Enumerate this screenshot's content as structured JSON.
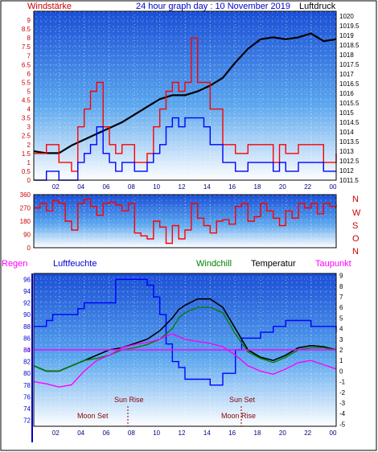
{
  "header": {
    "left_label": "Windstärke",
    "title": "24 hour graph day : 10 November 2019",
    "right_label": "Luftdruck"
  },
  "legend": {
    "regen": "Regen",
    "luftfeuchte": "Luftfeuchte",
    "windchill": "Windchill",
    "temperatur": "Temperatur",
    "taupunkt": "Taupunkt"
  },
  "compass_labels": [
    "N",
    "W",
    "S",
    "O",
    "N"
  ],
  "annotations": {
    "sun_rise": "Sun Rise",
    "sun_set": "Sun Set",
    "moon_set": "Moon Set",
    "moon_rise": "Moon Rise"
  },
  "colors": {
    "gust": "#ff0000",
    "wind": "#0000ff",
    "pressure": "#000000",
    "direction": "#ff0000",
    "humidity": "#0000ff",
    "windchill": "#008000",
    "temperature": "#000000",
    "dewpoint": "#ff00ff",
    "rain": "#ff00ff"
  },
  "chart_data": [
    {
      "type": "line",
      "x_ticks": [
        "02",
        "04",
        "06",
        "08",
        "10",
        "12",
        "14",
        "16",
        "18",
        "20",
        "22",
        "00"
      ],
      "left_ticks": [
        "0",
        "0.5",
        "1",
        "1.5",
        "2",
        "2.5",
        "3",
        "3.5",
        "4",
        "4.5",
        "5",
        "5.5",
        "6",
        "6.5",
        "7",
        "7.5",
        "8",
        "8.5",
        "9"
      ],
      "right_ticks": [
        "1011.5",
        "1012",
        "1012.5",
        "1013",
        "1013.5",
        "1014",
        "1014.5",
        "1015",
        "1015.5",
        "1016",
        "1016.5",
        "1017",
        "1017.5",
        "1018",
        "1018.5",
        "1019",
        "1019.5",
        "1020"
      ],
      "left_range": [
        0,
        9.5
      ],
      "right_range": [
        1011.5,
        1020.25
      ],
      "series": [
        {
          "role": "pressure",
          "axis": "right",
          "x": [
            0,
            1,
            2,
            3,
            4,
            5,
            6,
            7,
            8,
            9,
            10,
            11,
            12,
            13,
            14,
            15,
            16,
            17,
            18,
            19,
            20,
            21,
            22,
            23,
            24
          ],
          "y": [
            1013,
            1012.9,
            1012.9,
            1013.3,
            1013.6,
            1013.9,
            1014.2,
            1014.5,
            1014.9,
            1015.3,
            1015.7,
            1015.9,
            1015.9,
            1016.1,
            1016.4,
            1016.8,
            1017.6,
            1018.3,
            1018.8,
            1018.9,
            1018.8,
            1018.9,
            1019.1,
            1018.7,
            1018.8
          ]
        },
        {
          "role": "gust",
          "axis": "left",
          "x": [
            0,
            1,
            2,
            3,
            3.5,
            4,
            4.5,
            5,
            5.5,
            6,
            6.5,
            7,
            8,
            9,
            9.5,
            10,
            10.5,
            11,
            11.5,
            12,
            12.5,
            13,
            13.5,
            14,
            15,
            16,
            17,
            18,
            19,
            19.5,
            20,
            21,
            22,
            23,
            24
          ],
          "y": [
            1.5,
            2,
            1,
            0.5,
            3,
            4,
            5,
            5.5,
            3,
            2,
            1.5,
            2,
            1,
            1.5,
            3,
            4,
            5,
            5.5,
            5,
            5.5,
            8,
            5.5,
            5.5,
            4,
            2,
            1.5,
            2,
            2,
            1,
            2,
            1.5,
            2,
            2,
            1,
            1.5
          ]
        },
        {
          "role": "wind",
          "axis": "left",
          "x": [
            0,
            1,
            2,
            3,
            3.5,
            4,
            4.5,
            5,
            5.5,
            6,
            6.5,
            7,
            8,
            9,
            9.5,
            10,
            10.5,
            11,
            11.5,
            12,
            12.5,
            13,
            13.5,
            14,
            15,
            16,
            17,
            18,
            19,
            19.5,
            20,
            21,
            22,
            23,
            24
          ],
          "y": [
            0,
            0.5,
            0,
            0,
            1,
            1.5,
            2,
            3,
            1.5,
            1,
            0.5,
            1,
            0.5,
            1,
            1.5,
            2,
            3,
            3.5,
            3,
            3.5,
            3.5,
            3.5,
            3,
            2,
            1,
            0.5,
            1,
            1,
            0.5,
            1,
            0.5,
            1,
            1,
            0.5,
            0.5
          ]
        }
      ]
    },
    {
      "type": "line",
      "x_ticks": [
        "02",
        "04",
        "06",
        "08",
        "10",
        "12",
        "14",
        "16",
        "18",
        "20",
        "22",
        "00"
      ],
      "left_ticks": [
        "0",
        "90",
        "180",
        "270",
        "360"
      ],
      "left_range": [
        0,
        360
      ],
      "series": [
        {
          "role": "direction",
          "axis": "left",
          "x": [
            0,
            0.5,
            1,
            1.5,
            2,
            2.5,
            3,
            3.5,
            4,
            4.5,
            5,
            5.5,
            6,
            6.5,
            7,
            7.5,
            8,
            8.5,
            9,
            9.5,
            10,
            10.5,
            11,
            11.5,
            12,
            12.5,
            13,
            13.5,
            14,
            14.5,
            15,
            15.5,
            16,
            16.5,
            17,
            17.5,
            18,
            18.5,
            19,
            19.5,
            20,
            20.5,
            21,
            21.5,
            22,
            22.5,
            23,
            23.5,
            24
          ],
          "y": [
            270,
            300,
            250,
            320,
            300,
            180,
            120,
            300,
            330,
            280,
            220,
            300,
            310,
            290,
            250,
            300,
            100,
            80,
            60,
            180,
            140,
            30,
            150,
            60,
            120,
            300,
            200,
            150,
            100,
            180,
            190,
            160,
            280,
            300,
            180,
            210,
            300,
            250,
            200,
            150,
            250,
            200,
            300,
            270,
            300,
            230,
            300,
            280,
            290
          ]
        }
      ]
    },
    {
      "type": "line",
      "x_ticks": [
        "02",
        "04",
        "06",
        "08",
        "10",
        "12",
        "14",
        "16",
        "18",
        "20",
        "22",
        "00"
      ],
      "left_ticks": [
        "72",
        "74",
        "76",
        "78",
        "80",
        "82",
        "84",
        "86",
        "88",
        "90",
        "92",
        "94",
        "96"
      ],
      "right_ticks": [
        "-5",
        "-4",
        "-3",
        "-2",
        "-1",
        "0",
        "1",
        "2",
        "3",
        "4",
        "5",
        "6",
        "7",
        "8",
        "9"
      ],
      "rain_ticks": [
        "0"
      ],
      "left_range": [
        71,
        97
      ],
      "right_range": [
        -5.2,
        9.2
      ],
      "series": [
        {
          "role": "humidity",
          "axis": "left",
          "x": [
            0,
            1,
            1.5,
            2,
            3,
            3.5,
            4,
            5,
            6,
            6.5,
            7,
            8,
            9,
            9.5,
            10,
            10.5,
            11,
            11.5,
            12,
            13,
            14,
            15,
            16,
            16.5,
            17,
            18,
            19,
            20,
            21,
            22,
            23,
            24
          ],
          "y": [
            88,
            89,
            90,
            90,
            90,
            91,
            92,
            92,
            92,
            96,
            96,
            96,
            95,
            93,
            90,
            85,
            82,
            81,
            79,
            79,
            78,
            80,
            84,
            86,
            86,
            87,
            88,
            89,
            89,
            88,
            88,
            87
          ]
        },
        {
          "role": "temperature",
          "axis": "right",
          "x": [
            0,
            1,
            2,
            3,
            4,
            5,
            6,
            7,
            8,
            9,
            10,
            11,
            11.5,
            12,
            13,
            14,
            15,
            16,
            17,
            18,
            19,
            20,
            21,
            22,
            23,
            24
          ],
          "y": [
            0.5,
            0,
            0,
            0.5,
            1,
            1.5,
            2,
            2.2,
            2.6,
            3,
            3.8,
            5,
            5.8,
            6.2,
            6.8,
            6.8,
            6,
            4,
            2,
            1.3,
            1,
            1.5,
            2.2,
            2.4,
            2.3,
            2
          ]
        },
        {
          "role": "windchill",
          "axis": "right",
          "x": [
            0,
            1,
            2,
            3,
            4,
            5,
            6,
            7,
            8,
            9,
            10,
            11,
            11.5,
            12,
            13,
            14,
            15,
            16,
            17,
            18,
            19,
            20,
            21,
            22,
            23,
            24
          ],
          "y": [
            0.5,
            0,
            0,
            0.5,
            1,
            1.2,
            1.5,
            2,
            2.2,
            2.5,
            3,
            4,
            5,
            5.5,
            6,
            6,
            5.5,
            3.5,
            1.8,
            1.2,
            0.8,
            1.3,
            2,
            2.2,
            2.2,
            2
          ]
        },
        {
          "role": "dewpoint",
          "axis": "right",
          "x": [
            0,
            1,
            2,
            3,
            4,
            5,
            6,
            7,
            8,
            9,
            10,
            10.5,
            11,
            12,
            13,
            14,
            15,
            16,
            17,
            18,
            19,
            20,
            21,
            22,
            23,
            24
          ],
          "y": [
            -1,
            -1.2,
            -1.5,
            -1.3,
            0,
            1,
            1.5,
            2.2,
            2.5,
            2.7,
            3,
            3.3,
            3.5,
            3,
            2.8,
            2.6,
            2.3,
            1.5,
            0.5,
            0,
            -0.3,
            0.2,
            0.8,
            1,
            0.6,
            0.2
          ]
        },
        {
          "role": "rain",
          "axis": "rain",
          "x": [
            0,
            24
          ],
          "y": [
            0,
            0
          ]
        }
      ]
    }
  ]
}
